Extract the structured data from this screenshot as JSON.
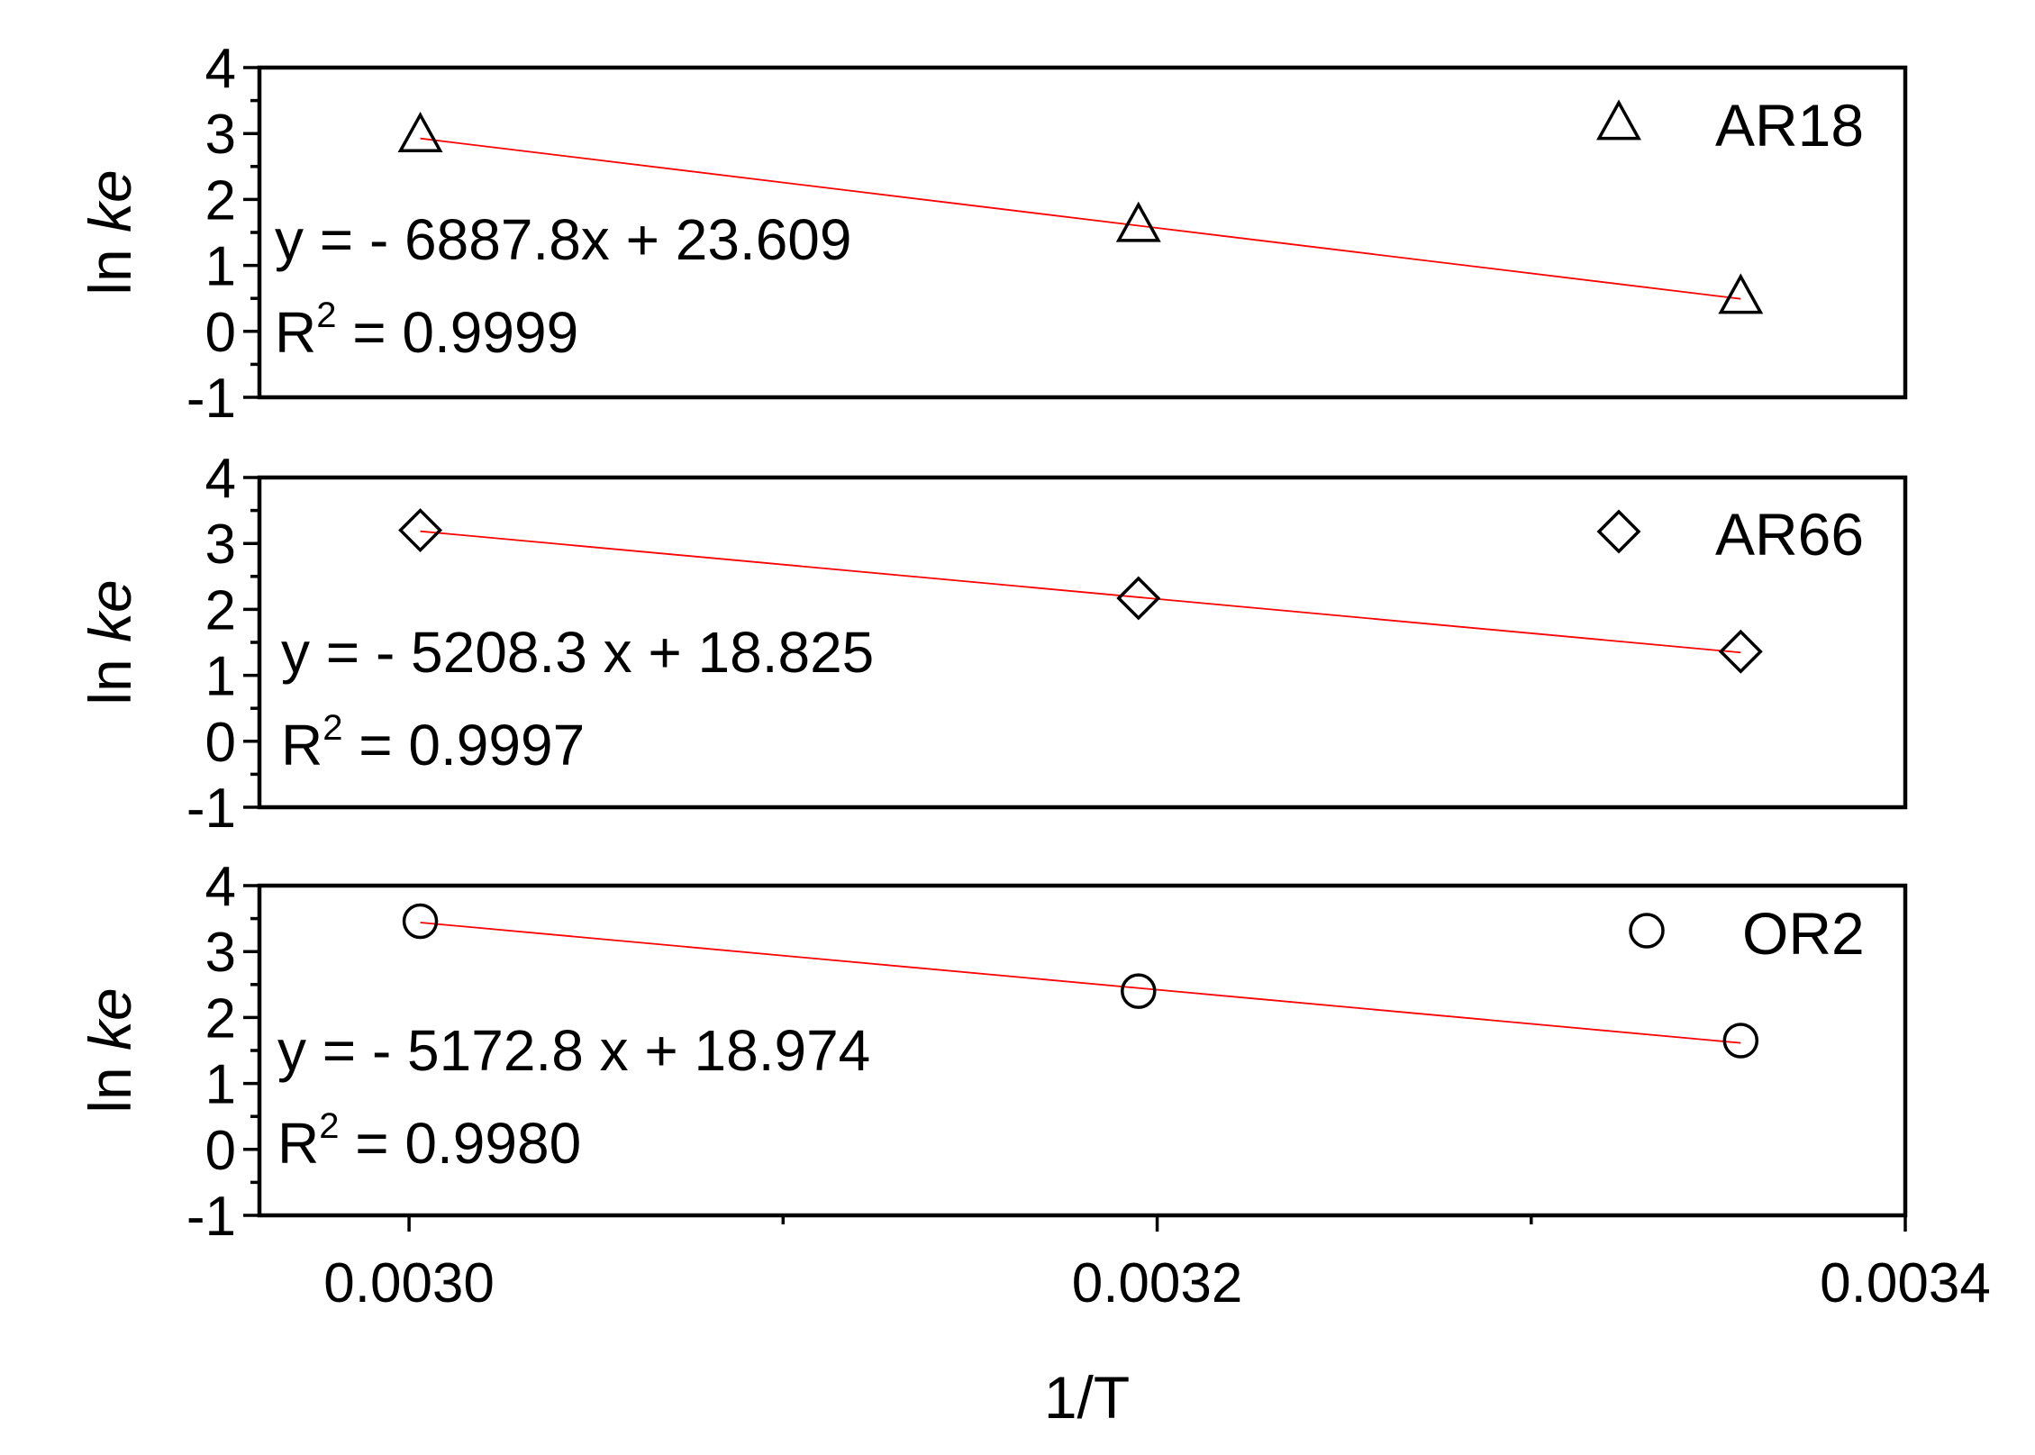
{
  "chart_data": {
    "type": "scatter",
    "xlabel": "1/T",
    "x_ticks": [
      "0.0030",
      "0.0032",
      "0.0034"
    ],
    "xlim": [
      0.00296,
      0.0034
    ],
    "panels": [
      {
        "ylabel_prefix": "ln ",
        "ylabel_italic": "ke",
        "ylim": [
          -1,
          4
        ],
        "y_ticks": [
          "4",
          "3",
          "2",
          "1",
          "0",
          "-1"
        ],
        "marker": "triangle",
        "series_name": "AR18",
        "x": [
          0.003003,
          0.003195,
          0.003356
        ],
        "y": [
          2.98,
          1.62,
          0.53
        ],
        "fit": {
          "slope": -6887.8,
          "intercept": 23.609
        },
        "equation": "y = - 6887.8x + 23.609",
        "r2_prefix": "R",
        "r2_sup": "2",
        "r2_value": " = 0.9999"
      },
      {
        "ylabel_prefix": "ln ",
        "ylabel_italic": "ke",
        "ylim": [
          -1,
          4
        ],
        "y_ticks": [
          "4",
          "3",
          "2",
          "1",
          "0",
          "-1"
        ],
        "marker": "diamond",
        "series_name": "AR66",
        "x": [
          0.003003,
          0.003195,
          0.003356
        ],
        "y": [
          3.2,
          2.17,
          1.36
        ],
        "fit": {
          "slope": -5208.3,
          "intercept": 18.825
        },
        "equation": "y = - 5208.3 x + 18.825",
        "r2_prefix": "R",
        "r2_sup": "2",
        "r2_value": " = 0.9997"
      },
      {
        "ylabel_prefix": "ln ",
        "ylabel_italic": "ke",
        "ylim": [
          -1,
          4
        ],
        "y_ticks": [
          "4",
          "3",
          "2",
          "1",
          "0",
          "-1"
        ],
        "marker": "circle",
        "series_name": "OR2",
        "x": [
          0.003003,
          0.003195,
          0.003356
        ],
        "y": [
          3.46,
          2.4,
          1.65
        ],
        "fit": {
          "slope": -5172.8,
          "intercept": 18.974
        },
        "equation": "y = - 5172.8 x + 18.974",
        "r2_prefix": "R",
        "r2_sup": "2",
        "r2_value": " = 0.9980"
      }
    ],
    "colors": {
      "fit_line": "#ff0000",
      "marker": "#000000",
      "frame": "#000000"
    },
    "grid": false,
    "legend_position": "top-right"
  }
}
